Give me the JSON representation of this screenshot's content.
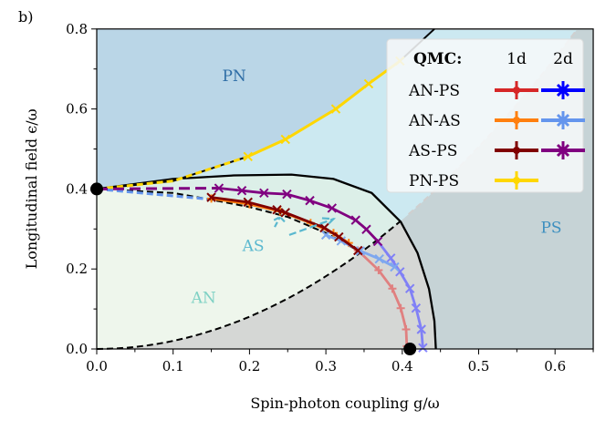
{
  "chart_data": {
    "type": "line",
    "panel_label": "b)",
    "xlabel": "Spin-photon coupling g/ω",
    "ylabel": "Longitudinal field ϵ/ω",
    "xlim": [
      0,
      0.65
    ],
    "ylim": [
      0,
      0.8
    ],
    "xticks": [
      0.0,
      0.1,
      0.2,
      0.3,
      0.4,
      0.5,
      0.6
    ],
    "xtick_labels": [
      "0.0",
      "0.1",
      "0.2",
      "0.3",
      "0.4",
      "0.5",
      "0.6"
    ],
    "yticks": [
      0.0,
      0.2,
      0.4,
      0.6,
      0.8
    ],
    "ytick_labels": [
      "0.0",
      "0.2",
      "0.4",
      "0.6",
      "0.8"
    ],
    "region_labels": [
      {
        "text": "PN",
        "x": 0.18,
        "y": 0.67,
        "color": "#2f6ea6"
      },
      {
        "text": "PS",
        "x": 0.595,
        "y": 0.29,
        "color": "#3d8fbf"
      },
      {
        "text": "AN",
        "x": 0.14,
        "y": 0.115,
        "color": "#7fd1c4"
      },
      {
        "text": "AS",
        "x": 0.205,
        "y": 0.245,
        "color": "#5ab8cf"
      }
    ],
    "boundaries": {
      "solid": [
        [
          0,
          0.4
        ],
        [
          0.1,
          0.425
        ],
        [
          0.18,
          0.434
        ],
        [
          0.255,
          0.436
        ],
        [
          0.31,
          0.425
        ],
        [
          0.36,
          0.39
        ],
        [
          0.398,
          0.318
        ],
        [
          0.42,
          0.24
        ],
        [
          0.435,
          0.15
        ],
        [
          0.442,
          0.07
        ],
        [
          0.444,
          0
        ]
      ],
      "an_upper": [
        [
          0,
          0.4
        ],
        [
          0.1,
          0.39
        ],
        [
          0.145,
          0.375
        ],
        [
          0.2,
          0.355
        ],
        [
          0.25,
          0.33
        ],
        [
          0.3,
          0.29
        ],
        [
          0.342,
          0.246
        ]
      ],
      "diagonal_coef": 2.02,
      "diagonal_xmax": 0.628,
      "pn_ps": [
        [
          0,
          0.4
        ],
        [
          0.1,
          0.42
        ],
        [
          0.198,
          0.481
        ],
        [
          0.247,
          0.524
        ],
        [
          0.313,
          0.6
        ],
        [
          0.356,
          0.663
        ],
        [
          0.397,
          0.72
        ],
        [
          0.442,
          0.8
        ]
      ]
    },
    "special_points": [
      [
        0,
        0.4
      ],
      [
        0.41,
        0
      ]
    ],
    "legend": {
      "title": "QMC:",
      "col1": "1d",
      "col2": "2d",
      "placement": "top-right",
      "rows": [
        {
          "label": "AN-PS",
          "c1": "#d62728",
          "c2": "#0000ff"
        },
        {
          "label": "AN-AS",
          "c1": "#ff7f0e",
          "c2": "#6495ed"
        },
        {
          "label": "AS-PS",
          "c1": "#800000",
          "c2": "#800080"
        },
        {
          "label": "PN-PS",
          "c1": "#ffd700",
          "c2": null
        }
      ]
    },
    "series": [
      {
        "name": "AN-PS 1d",
        "color": "#e36b6b",
        "marker": "plus",
        "alpha": 0.8,
        "points": [
          [
            0.342,
            0.246
          ],
          [
            0.369,
            0.197
          ],
          [
            0.387,
            0.151
          ],
          [
            0.398,
            0.102
          ],
          [
            0.405,
            0.049
          ],
          [
            0.406,
            0.007
          ]
        ]
      },
      {
        "name": "AN-PS 2d",
        "color": "#6b6bff",
        "marker": "x",
        "alpha": 0.8,
        "points": [
          [
            0.368,
            0.269
          ],
          [
            0.385,
            0.227
          ],
          [
            0.397,
            0.193
          ],
          [
            0.41,
            0.151
          ],
          [
            0.418,
            0.102
          ],
          [
            0.425,
            0.049
          ],
          [
            0.427,
            0.003
          ]
        ]
      },
      {
        "name": "AN-AS 1d",
        "color": "#ff7f0e",
        "marker": "plus",
        "alpha": 1,
        "points": [
          [
            0.15,
            0.376
          ],
          [
            0.2,
            0.362
          ],
          [
            0.24,
            0.344
          ],
          [
            0.28,
            0.315
          ],
          [
            0.31,
            0.29
          ],
          [
            0.33,
            0.265
          ]
        ]
      },
      {
        "name": "AN-AS 2d",
        "color": "#7ea7ef",
        "marker": "x",
        "alpha": 1,
        "points": [
          [
            0.3,
            0.285
          ],
          [
            0.32,
            0.27
          ],
          [
            0.345,
            0.245
          ],
          [
            0.37,
            0.225
          ],
          [
            0.39,
            0.205
          ]
        ]
      },
      {
        "name": "AS-PS 1d",
        "color": "#800000",
        "marker": "x",
        "alpha": 1,
        "points": [
          [
            0.15,
            0.379
          ],
          [
            0.198,
            0.367
          ],
          [
            0.236,
            0.348
          ],
          [
            0.247,
            0.341
          ],
          [
            0.298,
            0.303
          ],
          [
            0.317,
            0.28
          ],
          [
            0.342,
            0.246
          ]
        ]
      },
      {
        "name": "AS-PS 2d",
        "color": "#800080",
        "marker": "x",
        "alpha": 1,
        "points": [
          [
            0.16,
            0.402
          ],
          [
            0.19,
            0.396
          ],
          [
            0.219,
            0.39
          ],
          [
            0.249,
            0.387
          ],
          [
            0.279,
            0.371
          ],
          [
            0.308,
            0.352
          ],
          [
            0.339,
            0.322
          ],
          [
            0.353,
            0.299
          ],
          [
            0.368,
            0.269
          ]
        ]
      },
      {
        "name": "PN-PS 1d",
        "color": "#ffd700",
        "marker": "x",
        "alpha": 1,
        "points": [
          [
            0.198,
            0.481
          ],
          [
            0.247,
            0.524
          ],
          [
            0.313,
            0.6
          ],
          [
            0.356,
            0.663
          ],
          [
            0.397,
            0.72
          ]
        ]
      }
    ]
  }
}
